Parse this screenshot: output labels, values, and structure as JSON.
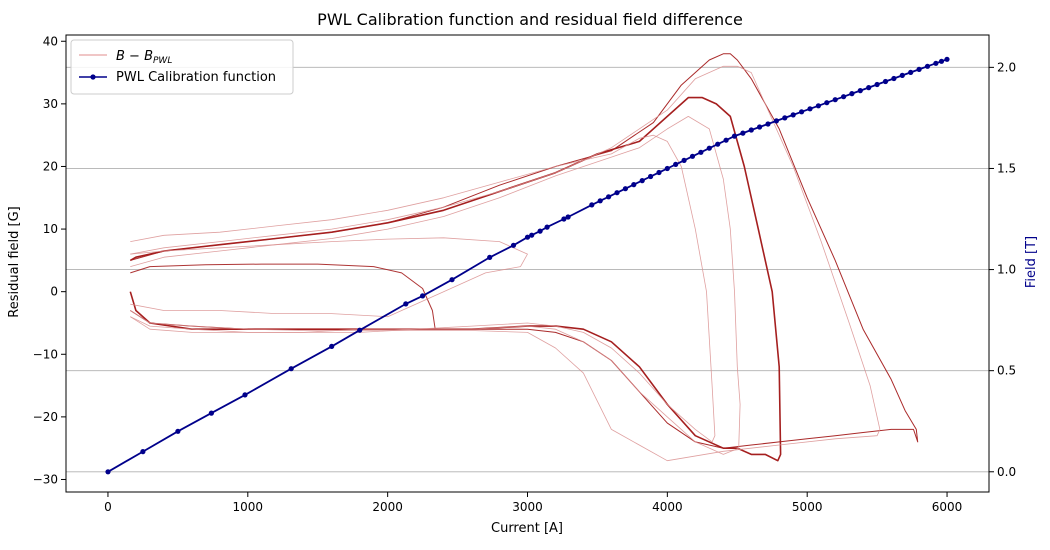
{
  "chart_data": {
    "type": "line",
    "title": "PWL Calibration function and residual field difference",
    "xlabel": "Current [A]",
    "ylabel_left": "Residual field [G]",
    "ylabel_right": "Field [T]",
    "xlim": [
      -300,
      6300
    ],
    "ylim_left": [
      -32,
      41
    ],
    "ylim_right": [
      -0.1,
      2.16
    ],
    "x_ticks": [
      0,
      1000,
      2000,
      3000,
      4000,
      5000,
      6000
    ],
    "y_left_ticks": [
      -30,
      -20,
      -10,
      0,
      10,
      20,
      30,
      40
    ],
    "y_right_ticks": [
      0.0,
      0.5,
      1.0,
      1.5,
      2.0
    ],
    "grid": "right-axis horizontal",
    "legend": {
      "placement": "upper-left",
      "entries": [
        {
          "label_base": "B − B",
          "label_sub": "PWL",
          "color": "#e6a5a5"
        },
        {
          "label": "PWL Calibration function",
          "color": "#00008b"
        }
      ]
    },
    "calibration": {
      "name": "PWL Calibration function",
      "color": "#00008b",
      "axis": "right",
      "x": [
        0,
        250,
        500,
        740,
        980,
        1310,
        1600,
        1800,
        2130,
        2250,
        2460,
        2730,
        2900,
        3000,
        3030,
        3090,
        3140,
        3260,
        3290,
        3460,
        3520,
        3580,
        3640,
        3700,
        3760,
        3820,
        3880,
        3940,
        4000,
        4060,
        4120,
        4180,
        4240,
        4300,
        4360,
        4420,
        4480,
        4540,
        4600,
        4660,
        4720,
        4780,
        4840,
        4900,
        4960,
        5020,
        5080,
        5140,
        5200,
        5260,
        5320,
        5380,
        5440,
        5500,
        5560,
        5620,
        5680,
        5740,
        5800,
        5860,
        5920,
        5960,
        6000
      ],
      "y": [
        0.0,
        0.1,
        0.2,
        0.29,
        0.38,
        0.51,
        0.62,
        0.7,
        0.83,
        0.87,
        0.95,
        1.06,
        1.12,
        1.16,
        1.17,
        1.19,
        1.21,
        1.25,
        1.26,
        1.32,
        1.34,
        1.36,
        1.38,
        1.4,
        1.42,
        1.44,
        1.46,
        1.48,
        1.5,
        1.52,
        1.54,
        1.56,
        1.58,
        1.6,
        1.62,
        1.64,
        1.66,
        1.675,
        1.69,
        1.705,
        1.72,
        1.735,
        1.75,
        1.765,
        1.78,
        1.795,
        1.81,
        1.825,
        1.84,
        1.855,
        1.87,
        1.885,
        1.9,
        1.915,
        1.93,
        1.945,
        1.96,
        1.975,
        1.99,
        2.005,
        2.02,
        2.03,
        2.04
      ]
    },
    "residual_series": [
      {
        "name": "B − B PWL loop 1",
        "color": "#a51f1f",
        "opacity": 1.0,
        "width": 1.6,
        "x": [
          160,
          200,
          400,
          800,
          1200,
          1600,
          2000,
          2400,
          2800,
          3200,
          3500,
          3800,
          4000,
          4150,
          4250,
          4350,
          4450,
          4550,
          4650,
          4750,
          4800,
          4810,
          4790,
          4700,
          4600,
          4500,
          4400,
          4200,
          4000,
          3800,
          3600,
          3400,
          3200,
          3000,
          2600,
          2200,
          1800,
          1400,
          1000,
          600,
          300,
          200,
          160
        ],
        "y": [
          5,
          5.5,
          6.5,
          7.5,
          8.5,
          9.5,
          11,
          13,
          16,
          19,
          22,
          24,
          28,
          31,
          31,
          30,
          28,
          20,
          10,
          0,
          -12,
          -26,
          -27,
          -26,
          -26,
          -25,
          -25,
          -23,
          -18,
          -12,
          -8,
          -6,
          -5.5,
          -5.5,
          -6,
          -6,
          -6,
          -6,
          -6,
          -6,
          -5,
          -3,
          0
        ]
      },
      {
        "name": "B − B PWL loop 2",
        "color": "#a51f1f",
        "opacity": 0.95,
        "width": 1.0,
        "x": [
          160,
          400,
          800,
          1200,
          1600,
          2000,
          2400,
          2800,
          3200,
          3600,
          3900,
          4100,
          4300,
          4400,
          4450,
          4500,
          4600,
          4800,
          5000,
          5200,
          5400,
          5600,
          5700,
          5780,
          5790,
          5760,
          5600,
          5400,
          5200,
          5000,
          4800,
          4600,
          4400,
          4200,
          4000,
          3800,
          3600,
          3400,
          3200,
          3000,
          2600,
          2200,
          1800,
          1400,
          1000,
          600,
          300,
          160
        ],
        "y": [
          5,
          6.5,
          7.5,
          8.5,
          9.5,
          11,
          13.5,
          17,
          20,
          22.5,
          27,
          33,
          37,
          38,
          38,
          37,
          34,
          26,
          15,
          5,
          -6,
          -14,
          -19,
          -22,
          -24,
          -22,
          -22,
          -22.5,
          -23,
          -23.5,
          -24,
          -24.5,
          -25,
          -24,
          -21,
          -16,
          -11,
          -8,
          -6.5,
          -6,
          -6,
          -6,
          -6,
          -6,
          -6,
          -5.5,
          -5,
          -3
        ]
      },
      {
        "name": "B − B PWL loop 3",
        "color": "#a51f1f",
        "opacity": 0.9,
        "width": 1.0,
        "x": [
          160,
          300,
          700,
          1100,
          1500,
          1900,
          2100,
          2250,
          2320,
          2340
        ],
        "y": [
          3,
          4,
          4.3,
          4.4,
          4.4,
          4.0,
          3.0,
          0.5,
          -3,
          -6
        ]
      },
      {
        "name": "B − B PWL loop 4",
        "color": "#d98f8f",
        "opacity": 0.85,
        "width": 0.8,
        "x": [
          160,
          400,
          800,
          1200,
          1600,
          2000,
          2400,
          2800,
          3200,
          3600,
          3800,
          3900,
          4000,
          4100,
          4200,
          4280,
          4320,
          4340,
          4320,
          4200,
          4000,
          3800,
          3600,
          3400,
          3200,
          3000,
          2600,
          2200,
          1800,
          1400,
          1000,
          600,
          300,
          160
        ],
        "y": [
          8,
          9,
          9.5,
          10.5,
          11.5,
          13,
          15,
          17.5,
          20,
          22,
          24.5,
          25,
          24,
          20,
          10,
          0,
          -15,
          -23,
          -24,
          -22,
          -18,
          -13,
          -9,
          -6.5,
          -5.5,
          -5,
          -5.5,
          -6,
          -6,
          -6.5,
          -6.5,
          -6.5,
          -6,
          -4
        ]
      },
      {
        "name": "B − B PWL loop 5",
        "color": "#d98f8f",
        "opacity": 0.85,
        "width": 0.8,
        "x": [
          160,
          400,
          800,
          1200,
          1600,
          2000,
          2400,
          2800,
          3000,
          2950,
          2700,
          2400,
          2000,
          1600,
          1200,
          800,
          400,
          160
        ],
        "y": [
          6,
          6.5,
          7.0,
          7.5,
          8.0,
          8.4,
          8.6,
          8,
          6,
          4,
          3,
          0,
          -4,
          -3.5,
          -3.5,
          -3,
          -3,
          -2
        ]
      },
      {
        "name": "B − B PWL loop 6",
        "color": "#d98f8f",
        "opacity": 0.85,
        "width": 0.8,
        "x": [
          160,
          400,
          800,
          1200,
          1600,
          2000,
          2400,
          2800,
          3200,
          3600,
          4000,
          4200,
          4400,
          4500,
          4550,
          4600,
          4700,
          4900,
          5100,
          5300,
          5450,
          5520,
          5500,
          5200,
          4800,
          4400,
          4000,
          3600,
          3400,
          3200,
          3000,
          2600,
          2200,
          1800,
          1400,
          1000,
          600,
          300,
          160
        ],
        "y": [
          6,
          7,
          8,
          9,
          10,
          11.5,
          13.5,
          16,
          19,
          23,
          29,
          34,
          36,
          36,
          35.5,
          35,
          30,
          20,
          8,
          -5,
          -15,
          -22,
          -23,
          -23.5,
          -24.5,
          -25.5,
          -27,
          -22,
          -13,
          -9,
          -6.5,
          -6.2,
          -6.2,
          -6.2,
          -6.2,
          -6,
          -5.5,
          -5,
          -3
        ]
      },
      {
        "name": "B − B PWL loop 7",
        "color": "#d98f8f",
        "opacity": 0.85,
        "width": 0.8,
        "x": [
          160,
          400,
          800,
          1200,
          1600,
          2000,
          2400,
          2800,
          3200,
          3600,
          3800,
          4000,
          4150,
          4300,
          4400,
          4450,
          4480,
          4500,
          4520,
          4510,
          4400,
          4200,
          4000,
          3800,
          3600,
          3400,
          3200,
          3000,
          2600,
          2200,
          1800,
          1400,
          1000,
          600,
          300,
          160
        ],
        "y": [
          4,
          5.5,
          6.5,
          7.5,
          8.5,
          10,
          12,
          15,
          18.5,
          21.5,
          23,
          26,
          28,
          26,
          18,
          10,
          0,
          -12,
          -18,
          -25,
          -26,
          -24,
          -20,
          -16,
          -11,
          -8,
          -6,
          -5.5,
          -6,
          -6,
          -6.5,
          -6.5,
          -6.5,
          -6,
          -5.5,
          -4
        ]
      }
    ]
  }
}
